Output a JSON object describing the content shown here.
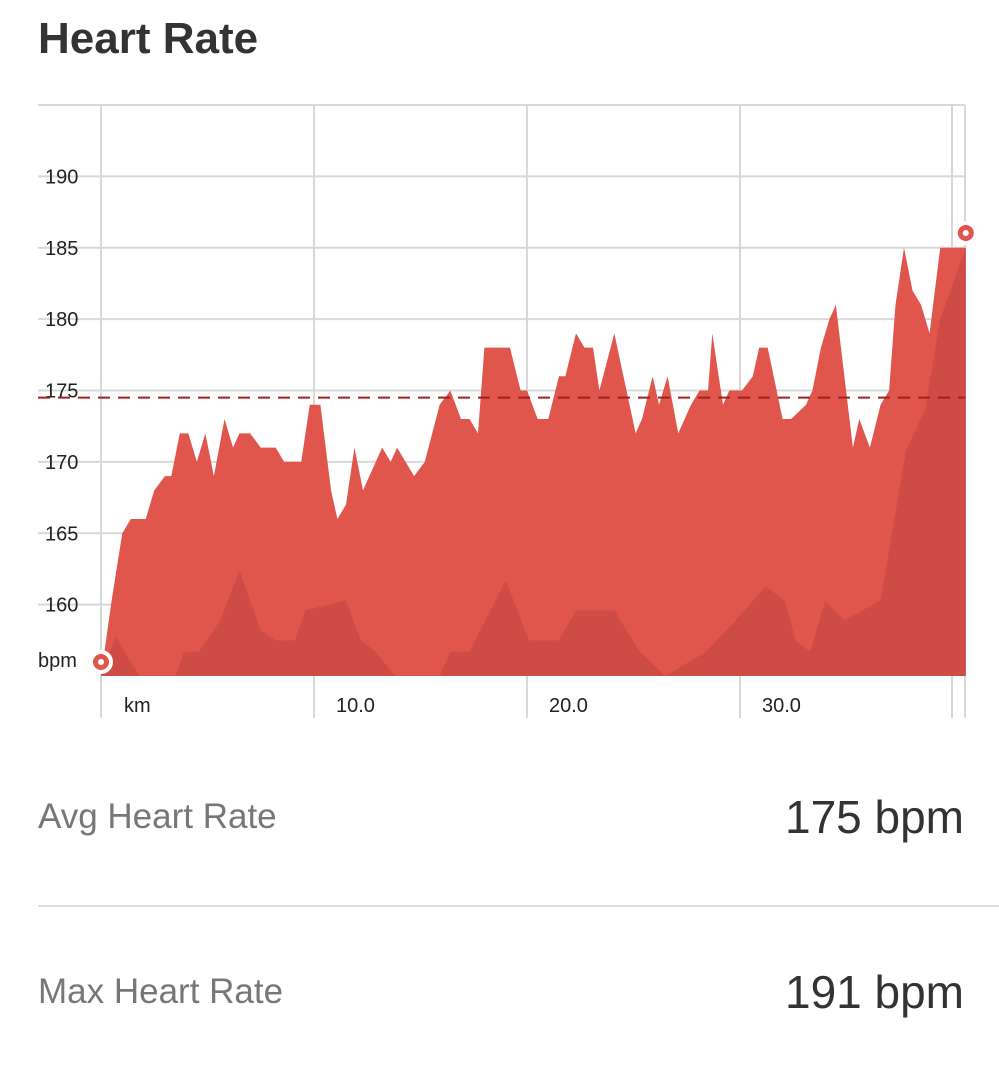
{
  "title": "Heart Rate",
  "stats": [
    {
      "label": "Avg Heart Rate",
      "value": "175 bpm"
    },
    {
      "label": "Max Heart Rate",
      "value": "191 bpm"
    }
  ],
  "chart_data": {
    "type": "area",
    "ylabel": "bpm",
    "xlabel": "km",
    "ylim": [
      155,
      195
    ],
    "xlim": [
      0,
      40.6
    ],
    "y_ticks": [
      "160",
      "165",
      "170",
      "175",
      "180",
      "185",
      "190"
    ],
    "y_tick_values": [
      160,
      165,
      170,
      175,
      180,
      185,
      190
    ],
    "x_ticks": [
      "10.0",
      "20.0",
      "30.0"
    ],
    "x_tick_values": [
      10,
      20,
      30
    ],
    "grid": true,
    "average": 174.5,
    "colors": {
      "main": "#e0554c",
      "secondary": "#c94a44",
      "average_line": "#a02020",
      "grid": "#d8d8d8"
    },
    "series": [
      {
        "x": [
          0,
          0.5,
          1.0,
          1.4,
          2.1,
          2.5,
          3.0,
          3.3,
          3.7,
          4.1,
          4.5,
          4.9,
          5.3,
          5.8,
          6.2,
          6.5,
          7.0,
          7.5,
          8.2,
          8.6,
          9.4,
          9.8,
          10.3,
          10.8,
          11.1,
          11.5,
          11.9,
          12.3,
          12.9,
          13.2,
          13.6,
          13.9,
          14.7,
          15.2,
          15.9,
          16.4,
          16.9,
          17.3,
          17.7,
          18.0,
          19.2,
          19.7,
          20.0,
          20.5,
          21.0,
          21.5,
          21.8,
          22.3,
          22.7,
          23.1,
          23.4,
          24.1,
          25.1,
          25.4,
          25.9,
          26.2,
          26.6,
          27.1,
          27.7,
          28.1,
          28.5,
          28.7,
          29.2,
          29.5,
          30.1,
          30.6,
          30.9,
          31.3,
          32.0,
          32.4,
          33.1,
          33.4,
          33.8,
          34.2,
          34.5,
          35.3,
          35.6,
          36.1,
          36.6,
          37.0,
          37.3,
          37.7,
          38.1,
          38.5,
          38.9,
          39.4,
          40.6
        ],
        "y": [
          155,
          160.3,
          165,
          166,
          166,
          168,
          169,
          169,
          172,
          172,
          170,
          172,
          169,
          173,
          171,
          172,
          172,
          171,
          171,
          170,
          170,
          174,
          174,
          168,
          166,
          167,
          171,
          168,
          170,
          171,
          170,
          171,
          169,
          170,
          174,
          175,
          173,
          173,
          172,
          178,
          178,
          175,
          175,
          173,
          173,
          176,
          176,
          179,
          178,
          178,
          175,
          179,
          172,
          173,
          176,
          174,
          176,
          172,
          174,
          175,
          175,
          179,
          174,
          175,
          175,
          176,
          178,
          178,
          173,
          173,
          174,
          175,
          178,
          180,
          181,
          171,
          173,
          171,
          174,
          175,
          181,
          185,
          182,
          181,
          179,
          185,
          185
        ]
      },
      {
        "x": [
          0,
          0.7,
          1.1,
          1.8,
          3.5,
          3.9,
          4.6,
          5.6,
          6.5,
          7.5,
          8.2,
          9.1,
          9.6,
          11.5,
          12.2,
          12.9,
          13.8,
          15.9,
          16.4,
          17.3,
          19.0,
          20.1,
          21.5,
          22.3,
          24.1,
          25.3,
          26.5,
          28.4,
          29.8,
          31.2,
          32.1,
          32.6,
          33.3,
          34.0,
          34.9,
          36.6,
          37.8,
          38.7,
          39.4,
          40.6
        ],
        "y": [
          155,
          157.8,
          156.7,
          155,
          155,
          156.7,
          156.7,
          158.9,
          162.4,
          158.2,
          157.5,
          157.5,
          159.6,
          160.3,
          157.5,
          156.7,
          155,
          155,
          156.7,
          156.7,
          161.7,
          157.5,
          157.5,
          159.6,
          159.6,
          156.7,
          155,
          156.7,
          158.9,
          161.3,
          160.3,
          157.5,
          156.7,
          160.3,
          158.9,
          160.3,
          170.8,
          173.7,
          180,
          185
        ]
      }
    ],
    "markers": [
      {
        "x": 0,
        "y": 156
      },
      {
        "x": 40.6,
        "y": 186
      }
    ]
  }
}
